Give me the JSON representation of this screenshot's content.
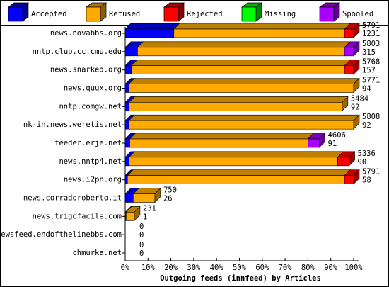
{
  "chart_data": {
    "type": "bar3d_stacked_horizontal",
    "xlabel": "Outgoing feeds (innfeed) by Articles",
    "categories": [
      "news.novabbs.org",
      "nntp.club.cc.cmu.edu",
      "news.snarked.org",
      "news.quux.org",
      "nntp.comgw.net",
      "nk-in.news.weretis.net",
      "feeder.erje.net",
      "news.nntp4.net",
      "news.i2pn.org",
      "news.corradoroberto.it",
      "news.trigofacile.com",
      "newsfeed.endofthelinebbs.com",
      "chmurka.net"
    ],
    "series": [
      {
        "name": "Accepted",
        "color": "#0000ff",
        "values": [
          21.3,
          5.4,
          2.7,
          1.6,
          1.7,
          1.6,
          2.0,
          1.7,
          1.0,
          3.5,
          0.4,
          0,
          0
        ]
      },
      {
        "name": "Refused",
        "color": "#ffaa00",
        "values": [
          74.7,
          90.6,
          93.3,
          98.4,
          93.3,
          98.4,
          78,
          91.3,
          95,
          9.5,
          3.6,
          0,
          0
        ]
      },
      {
        "name": "Rejected",
        "color": "#ff0000",
        "values": [
          4,
          0,
          4,
          0,
          0,
          0,
          0,
          5,
          4,
          0,
          0,
          0,
          0
        ]
      },
      {
        "name": "Missing",
        "color": "#00ff00",
        "values": [
          0,
          0,
          0,
          0,
          0,
          0,
          0,
          0,
          0,
          0,
          0,
          0,
          0
        ]
      },
      {
        "name": "Spooled",
        "color": "#aa00ff",
        "values": [
          0,
          4,
          0,
          0,
          0,
          0,
          5,
          0,
          0,
          0,
          0,
          0,
          0
        ]
      }
    ],
    "offered": [
      5791,
      5803,
      5768,
      5771,
      5484,
      5808,
      4606,
      5336,
      5791,
      750,
      231,
      0,
      0
    ],
    "accepted_articles": [
      1231,
      315,
      157,
      94,
      92,
      92,
      91,
      90,
      58,
      26,
      1,
      0,
      0
    ],
    "xlim": [
      0,
      100
    ],
    "xticks": [
      {
        "value": 0,
        "label": "0%"
      },
      {
        "value": 10,
        "label": "10%"
      },
      {
        "value": 20,
        "label": "20%"
      },
      {
        "value": 30,
        "label": "30%"
      },
      {
        "value": 40,
        "label": "40%"
      },
      {
        "value": 50,
        "label": "50%"
      },
      {
        "value": 60,
        "label": "60%"
      },
      {
        "value": 70,
        "label": "70%"
      },
      {
        "value": 80,
        "label": "80%"
      },
      {
        "value": 90,
        "label": "90%"
      },
      {
        "value": 100,
        "label": "100%"
      }
    ]
  }
}
